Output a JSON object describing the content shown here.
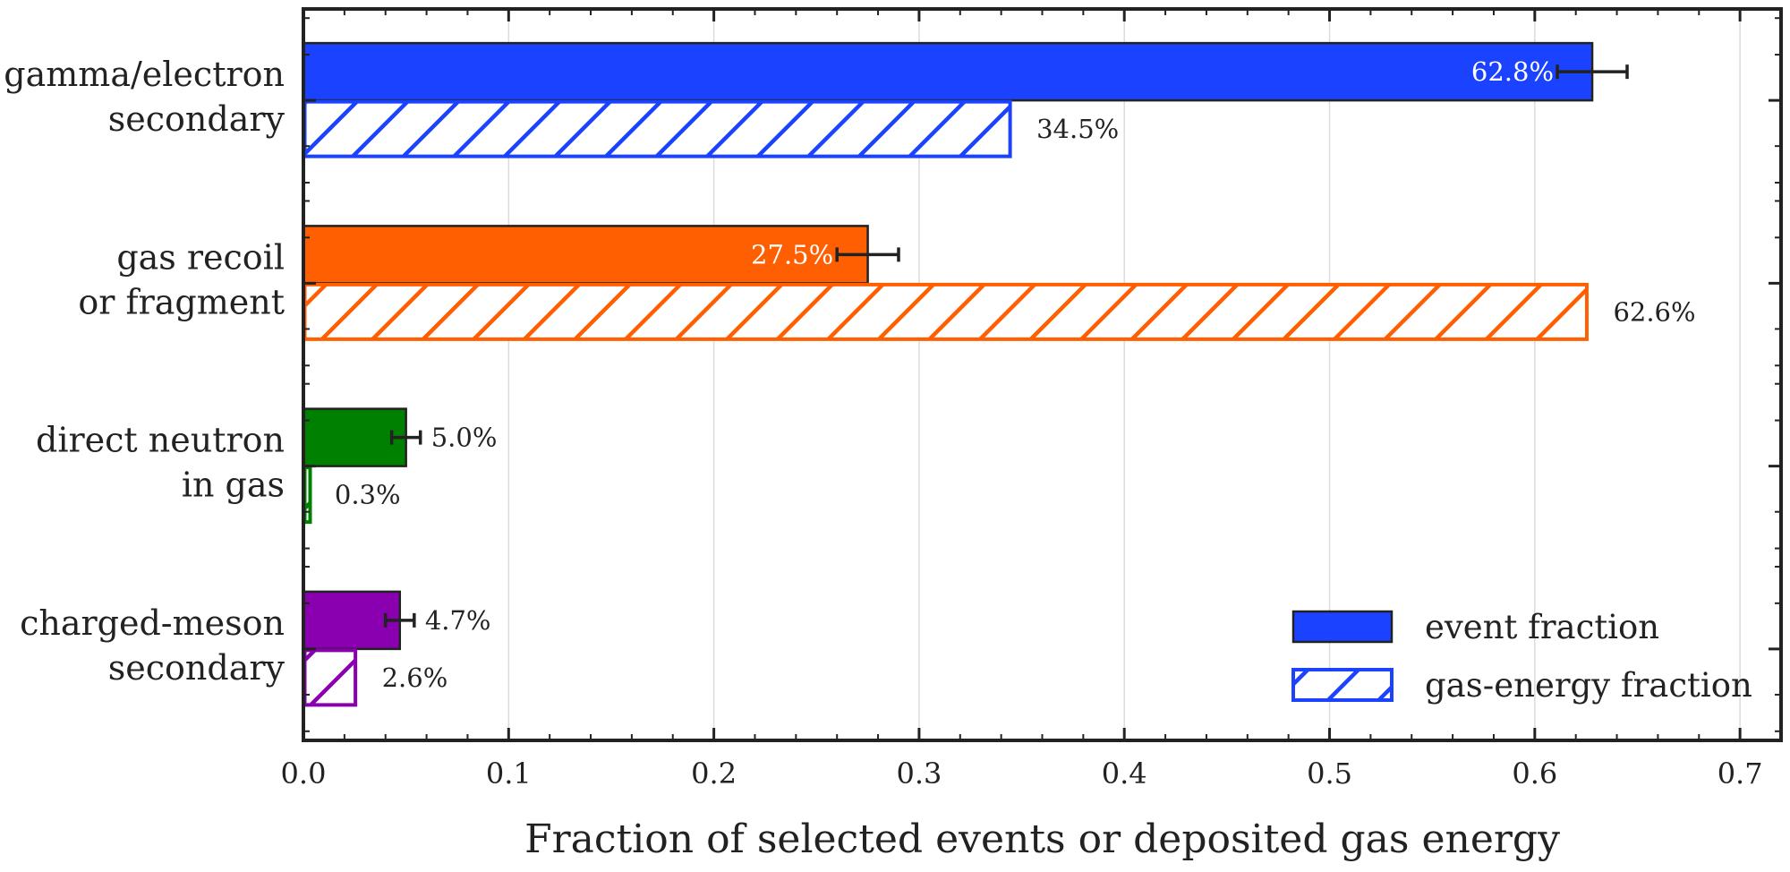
{
  "chart_data": {
    "type": "bar",
    "orientation": "horizontal",
    "xlabel": "Fraction of selected events or deposited gas energy",
    "xlim": [
      0,
      0.72
    ],
    "xticks": [
      "0.0",
      "0.1",
      "0.2",
      "0.3",
      "0.4",
      "0.5",
      "0.6",
      "0.7"
    ],
    "grid": "vertical",
    "legend_position": "bottom-right",
    "categories": [
      {
        "line1": "gamma/electron",
        "line2": "secondary",
        "color": "#1a42ff"
      },
      {
        "line1": "gas recoil",
        "line2": "or fragment",
        "color": "#ff5f00"
      },
      {
        "line1": "direct neutron",
        "line2": "in gas",
        "color": "#008000"
      },
      {
        "line1": "charged-meson",
        "line2": "secondary",
        "color": "#8a00b0"
      }
    ],
    "series": [
      {
        "name": "event fraction",
        "style": "solid",
        "values": [
          0.628,
          0.275,
          0.05,
          0.047
        ],
        "labels": [
          "62.8%",
          "27.5%",
          "5.0%",
          "4.7%"
        ],
        "errors": [
          0.017,
          0.015,
          0.007,
          0.007
        ]
      },
      {
        "name": "gas-energy fraction",
        "style": "hatched",
        "values": [
          0.345,
          0.626,
          0.003,
          0.026
        ],
        "labels": [
          "34.5%",
          "62.6%",
          "0.3%",
          "2.6%"
        ]
      }
    ]
  }
}
